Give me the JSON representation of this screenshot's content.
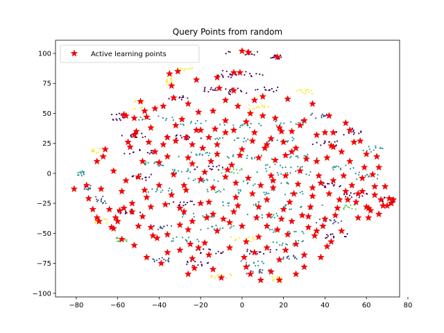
{
  "chart_data": {
    "type": "scatter",
    "title": "Query Points from random",
    "xlabel": "",
    "ylabel": "",
    "xlim": [
      -90,
      76
    ],
    "ylim": [
      -103,
      111
    ],
    "xticks": [
      -80,
      -60,
      -40,
      -20,
      0,
      20,
      40,
      60,
      80
    ],
    "yticks": [
      -100,
      -75,
      -50,
      -25,
      0,
      25,
      50,
      75,
      100
    ],
    "grid": false,
    "legend": {
      "position": "top-left",
      "entries": [
        "Active learning points"
      ]
    },
    "colors": {
      "query": "#ff0000",
      "classes": [
        "#440154",
        "#3b528b",
        "#21918c",
        "#5ec962",
        "#fde725"
      ]
    },
    "clusters": [
      {
        "x": 0,
        "y": 100,
        "w": 10,
        "h": 2,
        "cls": 0
      },
      {
        "x": 16,
        "y": 97,
        "w": 3,
        "h": 2,
        "cls": 0
      },
      {
        "x": -8,
        "y": 83,
        "w": 8,
        "h": 3,
        "cls": 0
      },
      {
        "x": 2,
        "y": 82,
        "w": 8,
        "h": 3,
        "cls": 0
      },
      {
        "x": -27,
        "y": 86,
        "w": 5,
        "h": 2,
        "cls": 4
      },
      {
        "x": -35,
        "y": 77,
        "w": 3,
        "h": 3,
        "cls": 4
      },
      {
        "x": -15,
        "y": 70,
        "w": 4,
        "h": 2,
        "cls": 0
      },
      {
        "x": -3,
        "y": 68,
        "w": 6,
        "h": 3,
        "cls": 0
      },
      {
        "x": 12,
        "y": 70,
        "w": 6,
        "h": 2,
        "cls": 0
      },
      {
        "x": 30,
        "y": 68,
        "w": 4,
        "h": 2,
        "cls": 4
      },
      {
        "x": -50,
        "y": 57,
        "w": 3,
        "h": 4,
        "cls": 4
      },
      {
        "x": -30,
        "y": 63,
        "w": 6,
        "h": 2,
        "cls": 0
      },
      {
        "x": 8,
        "y": 55,
        "w": 5,
        "h": 2,
        "cls": 4
      },
      {
        "x": 37,
        "y": 48,
        "w": 4,
        "h": 2,
        "cls": 1
      },
      {
        "x": -60,
        "y": 47,
        "w": 3,
        "h": 3,
        "cls": 0
      },
      {
        "x": -40,
        "y": 46,
        "w": 10,
        "h": 2,
        "cls": 2
      },
      {
        "x": -18,
        "y": 42,
        "w": 12,
        "h": 2,
        "cls": 2
      },
      {
        "x": 3,
        "y": 40,
        "w": 10,
        "h": 2,
        "cls": 2
      },
      {
        "x": 22,
        "y": 42,
        "w": 8,
        "h": 2,
        "cls": 2
      },
      {
        "x": 50,
        "y": 35,
        "w": 8,
        "h": 3,
        "cls": 0
      },
      {
        "x": -52,
        "y": 32,
        "w": 6,
        "h": 2,
        "cls": 0
      },
      {
        "x": -28,
        "y": 30,
        "w": 10,
        "h": 2,
        "cls": 0
      },
      {
        "x": -5,
        "y": 28,
        "w": 10,
        "h": 2,
        "cls": 2
      },
      {
        "x": 18,
        "y": 28,
        "w": 8,
        "h": 2,
        "cls": 2
      },
      {
        "x": 40,
        "y": 25,
        "w": 6,
        "h": 2,
        "cls": 0
      },
      {
        "x": 62,
        "y": 20,
        "w": 6,
        "h": 3,
        "cls": 2
      },
      {
        "x": -70,
        "y": 18,
        "w": 3,
        "h": 4,
        "cls": 4
      },
      {
        "x": -50,
        "y": 18,
        "w": 8,
        "h": 2,
        "cls": 0
      },
      {
        "x": -25,
        "y": 16,
        "w": 10,
        "h": 2,
        "cls": 2
      },
      {
        "x": 5,
        "y": 14,
        "w": 12,
        "h": 2,
        "cls": 2
      },
      {
        "x": 30,
        "y": 14,
        "w": 8,
        "h": 2,
        "cls": 2
      },
      {
        "x": -42,
        "y": 8,
        "w": 5,
        "h": 2,
        "cls": 2
      },
      {
        "x": -15,
        "y": 5,
        "w": 8,
        "h": 2,
        "cls": 0
      },
      {
        "x": 20,
        "y": 6,
        "w": 10,
        "h": 2,
        "cls": 2
      },
      {
        "x": 48,
        "y": 5,
        "w": 6,
        "h": 2,
        "cls": 2
      },
      {
        "x": -78,
        "y": 0,
        "w": 2,
        "h": 2,
        "cls": 2
      },
      {
        "x": -28,
        "y": 2,
        "w": 6,
        "h": 2,
        "cls": 2
      },
      {
        "x": -5,
        "y": 2,
        "w": 5,
        "h": 2,
        "cls": 3
      },
      {
        "x": 20,
        "y": 0,
        "w": 14,
        "h": 2,
        "cls": 2
      },
      {
        "x": 60,
        "y": -2,
        "w": 6,
        "h": 3,
        "cls": 2
      },
      {
        "x": -48,
        "y": -3,
        "w": 5,
        "h": 3,
        "cls": 0
      },
      {
        "x": -20,
        "y": -6,
        "w": 10,
        "h": 2,
        "cls": 2
      },
      {
        "x": 12,
        "y": -8,
        "w": 12,
        "h": 2,
        "cls": 2
      },
      {
        "x": 45,
        "y": -10,
        "w": 6,
        "h": 2,
        "cls": 0
      },
      {
        "x": -75,
        "y": -12,
        "w": 2,
        "h": 2,
        "cls": 1
      },
      {
        "x": -40,
        "y": -14,
        "w": 8,
        "h": 2,
        "cls": 2
      },
      {
        "x": -10,
        "y": -15,
        "w": 10,
        "h": 2,
        "cls": 2
      },
      {
        "x": 20,
        "y": -16,
        "w": 10,
        "h": 2,
        "cls": 2
      },
      {
        "x": 55,
        "y": -18,
        "w": 6,
        "h": 2,
        "cls": 0
      },
      {
        "x": -68,
        "y": -22,
        "w": 3,
        "h": 3,
        "cls": 1
      },
      {
        "x": -30,
        "y": -25,
        "w": 8,
        "h": 2,
        "cls": 0
      },
      {
        "x": 0,
        "y": -25,
        "w": 10,
        "h": 2,
        "cls": 2
      },
      {
        "x": 30,
        "y": -28,
        "w": 10,
        "h": 2,
        "cls": 2
      },
      {
        "x": 52,
        "y": -28,
        "w": 4,
        "h": 2,
        "cls": 3
      },
      {
        "x": 70,
        "y": -23,
        "w": 3,
        "h": 3,
        "cls": 0
      },
      {
        "x": -55,
        "y": -32,
        "w": 6,
        "h": 2,
        "cls": 0
      },
      {
        "x": -22,
        "y": -35,
        "w": 8,
        "h": 2,
        "cls": 2
      },
      {
        "x": 10,
        "y": -35,
        "w": 10,
        "h": 2,
        "cls": 2
      },
      {
        "x": 40,
        "y": -40,
        "w": 8,
        "h": 2,
        "cls": 1
      },
      {
        "x": -68,
        "y": -40,
        "w": 3,
        "h": 3,
        "cls": 4
      },
      {
        "x": -40,
        "y": -45,
        "w": 6,
        "h": 2,
        "cls": 1
      },
      {
        "x": -10,
        "y": -45,
        "w": 10,
        "h": 2,
        "cls": 2
      },
      {
        "x": 20,
        "y": -48,
        "w": 10,
        "h": 2,
        "cls": 2
      },
      {
        "x": 45,
        "y": -52,
        "w": 6,
        "h": 2,
        "cls": 0
      },
      {
        "x": -58,
        "y": -55,
        "w": 3,
        "h": 2,
        "cls": 3
      },
      {
        "x": -28,
        "y": -55,
        "w": 8,
        "h": 2,
        "cls": 2
      },
      {
        "x": 0,
        "y": -55,
        "w": 8,
        "h": 2,
        "cls": 4
      },
      {
        "x": 22,
        "y": -58,
        "w": 8,
        "h": 2,
        "cls": 2
      },
      {
        "x": -15,
        "y": -65,
        "w": 8,
        "h": 2,
        "cls": 0
      },
      {
        "x": 10,
        "y": -65,
        "w": 8,
        "h": 2,
        "cls": 0
      },
      {
        "x": -40,
        "y": -72,
        "w": 5,
        "h": 2,
        "cls": 1
      },
      {
        "x": -22,
        "y": -75,
        "w": 6,
        "h": 2,
        "cls": 0
      },
      {
        "x": 5,
        "y": -75,
        "w": 6,
        "h": 2,
        "cls": 2
      },
      {
        "x": 25,
        "y": -70,
        "w": 6,
        "h": 2,
        "cls": 1
      },
      {
        "x": -10,
        "y": -86,
        "w": 5,
        "h": 2,
        "cls": 4
      },
      {
        "x": 8,
        "y": -82,
        "w": 6,
        "h": 2,
        "cls": 1
      },
      {
        "x": 17,
        "y": -88,
        "w": 3,
        "h": 3,
        "cls": 4
      }
    ],
    "points": [
      [
        -81,
        -13
      ],
      [
        -75,
        -10
      ],
      [
        -74,
        -21
      ],
      [
        -72,
        -30
      ],
      [
        -70,
        -37
      ],
      [
        -69,
        -40
      ],
      [
        -68,
        -13
      ],
      [
        -66,
        20
      ],
      [
        -67,
        14
      ],
      [
        -63,
        -45
      ],
      [
        -61,
        -37
      ],
      [
        -60,
        -40
      ],
      [
        -59,
        -31
      ],
      [
        -58,
        -55
      ],
      [
        -57,
        -29
      ],
      [
        -57,
        49
      ],
      [
        -56,
        48
      ],
      [
        -55,
        26
      ],
      [
        -54,
        22
      ],
      [
        -53,
        -32
      ],
      [
        -52,
        32
      ],
      [
        -51,
        35
      ],
      [
        -50,
        -3
      ],
      [
        -50,
        -44
      ],
      [
        -49,
        60
      ],
      [
        -48,
        -36
      ],
      [
        -47,
        52
      ],
      [
        -47,
        -14
      ],
      [
        -46,
        47
      ],
      [
        -45,
        26
      ],
      [
        -44,
        -45
      ],
      [
        -43,
        -52
      ],
      [
        -42,
        18
      ],
      [
        -41,
        -54
      ],
      [
        -40,
        9
      ],
      [
        -39,
        -75
      ],
      [
        -38,
        24
      ],
      [
        -37,
        -26
      ],
      [
        -36,
        -51
      ],
      [
        -35,
        83
      ],
      [
        -34,
        73
      ],
      [
        -33,
        63
      ],
      [
        -33,
        -1
      ],
      [
        -32,
        27
      ],
      [
        -31,
        85
      ],
      [
        -30,
        -43
      ],
      [
        -30,
        -29
      ],
      [
        -29,
        45
      ],
      [
        -28,
        -10
      ],
      [
        -27,
        30
      ],
      [
        -26,
        13
      ],
      [
        -26,
        -47
      ],
      [
        -25,
        -59
      ],
      [
        -24,
        -71
      ],
      [
        -23,
        -79
      ],
      [
        -22,
        36
      ],
      [
        -21,
        51
      ],
      [
        -21,
        -62
      ],
      [
        -20,
        -25
      ],
      [
        -19,
        21
      ],
      [
        -18,
        1
      ],
      [
        -17,
        -37
      ],
      [
        -16,
        -68
      ],
      [
        -15,
        10
      ],
      [
        -14,
        -34
      ],
      [
        -13,
        37
      ],
      [
        -12,
        24
      ],
      [
        -11,
        71
      ],
      [
        -10,
        -87
      ],
      [
        -9,
        -38
      ],
      [
        -8,
        34
      ],
      [
        -8,
        61
      ],
      [
        -7,
        3
      ],
      [
        -6,
        -41
      ],
      [
        -5,
        7
      ],
      [
        -4,
        69
      ],
      [
        -3,
        -20
      ],
      [
        -2,
        -27
      ],
      [
        -1,
        15
      ],
      [
        -1,
        84
      ],
      [
        0,
        102
      ],
      [
        1,
        -70
      ],
      [
        2,
        -57
      ],
      [
        2,
        43
      ],
      [
        3,
        101
      ],
      [
        4,
        -84
      ],
      [
        5,
        -17
      ],
      [
        5,
        27
      ],
      [
        6,
        61
      ],
      [
        7,
        -37
      ],
      [
        8,
        13
      ],
      [
        8,
        -53
      ],
      [
        9,
        -89
      ],
      [
        10,
        48
      ],
      [
        11,
        21
      ],
      [
        12,
        -22
      ],
      [
        12,
        -62
      ],
      [
        13,
        -35
      ],
      [
        14,
        29
      ],
      [
        14,
        -2
      ],
      [
        15,
        -12
      ],
      [
        16,
        11
      ],
      [
        17,
        -47
      ],
      [
        17,
        97
      ],
      [
        18,
        -89
      ],
      [
        19,
        35
      ],
      [
        19,
        -38
      ],
      [
        20,
        26
      ],
      [
        21,
        15
      ],
      [
        21,
        -64
      ],
      [
        22,
        -51
      ],
      [
        23,
        -24
      ],
      [
        24,
        35
      ],
      [
        25,
        -17
      ],
      [
        26,
        -59
      ],
      [
        26,
        21
      ],
      [
        27,
        -9
      ],
      [
        28,
        2
      ],
      [
        29,
        -35
      ],
      [
        30,
        -68
      ],
      [
        31,
        12
      ],
      [
        32,
        -45
      ],
      [
        33,
        -28
      ],
      [
        34,
        -19
      ],
      [
        35,
        -52
      ],
      [
        36,
        32
      ],
      [
        37,
        -2
      ],
      [
        38,
        -8
      ],
      [
        39,
        -44
      ],
      [
        40,
        34
      ],
      [
        40,
        -38
      ],
      [
        41,
        13
      ],
      [
        41,
        -61
      ],
      [
        42,
        -17
      ],
      [
        43,
        23
      ],
      [
        43,
        -57
      ],
      [
        44,
        34
      ],
      [
        45,
        -35
      ],
      [
        46,
        -29
      ],
      [
        47,
        -22
      ],
      [
        48,
        18
      ],
      [
        49,
        -2
      ],
      [
        50,
        -15
      ],
      [
        50,
        42
      ],
      [
        51,
        -22
      ],
      [
        52,
        36
      ],
      [
        53,
        -10
      ],
      [
        54,
        26
      ],
      [
        55,
        -24
      ],
      [
        56,
        -17
      ],
      [
        57,
        27
      ],
      [
        58,
        -15
      ],
      [
        59,
        5
      ],
      [
        60,
        16
      ],
      [
        61,
        -29
      ],
      [
        61,
        -37
      ],
      [
        62,
        -31
      ],
      [
        63,
        -1
      ],
      [
        64,
        -11
      ],
      [
        65,
        14
      ],
      [
        66,
        5
      ],
      [
        67,
        -22
      ],
      [
        68,
        -27
      ],
      [
        69,
        -11
      ],
      [
        70,
        -27
      ],
      [
        71,
        -21
      ],
      [
        72,
        -25
      ],
      [
        73,
        -22
      ],
      [
        60,
        -28
      ],
      [
        56,
        -37
      ],
      [
        -64,
        -30
      ],
      [
        -58,
        -15
      ],
      [
        -53,
        -25
      ],
      [
        -46,
        -20
      ],
      [
        -40,
        -10
      ],
      [
        -34,
        -18
      ],
      [
        -27,
        -14
      ],
      [
        -20,
        -5
      ],
      [
        -14,
        -12
      ],
      [
        -8,
        -3
      ],
      [
        -3,
        -8
      ],
      [
        3,
        -4
      ],
      [
        9,
        -10
      ],
      [
        15,
        -6
      ],
      [
        21,
        -2
      ],
      [
        -48,
        10
      ],
      [
        -36,
        14
      ],
      [
        -24,
        8
      ],
      [
        -12,
        16
      ],
      [
        0,
        20
      ],
      [
        12,
        24
      ],
      [
        24,
        18
      ],
      [
        36,
        10
      ],
      [
        -44,
        38
      ],
      [
        -32,
        40
      ],
      [
        -20,
        36
      ],
      [
        -8,
        44
      ],
      [
        4,
        50
      ],
      [
        16,
        46
      ],
      [
        28,
        40
      ],
      [
        -38,
        56
      ],
      [
        -26,
        58
      ],
      [
        -14,
        52
      ],
      [
        -2,
        56
      ],
      [
        10,
        64
      ],
      [
        22,
        62
      ],
      [
        34,
        58
      ],
      [
        -22,
        78
      ],
      [
        -12,
        80
      ],
      [
        -4,
        84
      ],
      [
        -30,
        -64
      ],
      [
        -18,
        -58
      ],
      [
        -6,
        -62
      ],
      [
        6,
        -66
      ],
      [
        18,
        -72
      ],
      [
        30,
        -78
      ],
      [
        -26,
        -84
      ],
      [
        -14,
        -80
      ],
      [
        2,
        -78
      ],
      [
        14,
        -82
      ],
      [
        -62,
        -46
      ],
      [
        -52,
        -60
      ],
      [
        -46,
        -70
      ],
      [
        -36,
        -66
      ],
      [
        -24,
        -40
      ],
      [
        -12,
        -48
      ],
      [
        0,
        -44
      ],
      [
        12,
        -44
      ],
      [
        24,
        -40
      ],
      [
        36,
        -48
      ],
      [
        -70,
        10
      ],
      [
        -62,
        2
      ],
      [
        -56,
        -6
      ],
      [
        -44,
        -28
      ],
      [
        -28,
        -32
      ],
      [
        -16,
        -24
      ],
      [
        -4,
        -32
      ],
      [
        8,
        -28
      ],
      [
        20,
        -30
      ],
      [
        32,
        -36
      ],
      [
        -52,
        46
      ],
      [
        -42,
        54
      ],
      [
        -36,
        30
      ],
      [
        -24,
        24
      ],
      [
        -16,
        30
      ],
      [
        -4,
        36
      ],
      [
        6,
        34
      ],
      [
        18,
        38
      ],
      [
        30,
        44
      ],
      [
        42,
        48
      ],
      [
        44,
        -6
      ],
      [
        52,
        10
      ],
      [
        58,
        -4
      ],
      [
        64,
        -18
      ],
      [
        66,
        -34
      ],
      [
        48,
        -48
      ],
      [
        38,
        -70
      ],
      [
        26,
        -84
      ],
      [
        44,
        22
      ],
      [
        34,
        -12
      ]
    ]
  }
}
